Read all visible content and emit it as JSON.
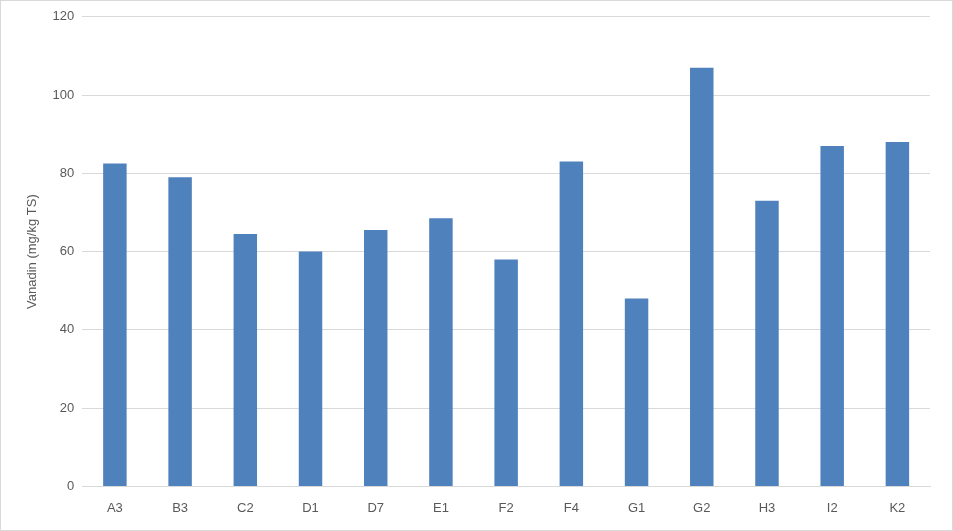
{
  "chart_data": {
    "type": "bar",
    "y_label": "Vanadin (mg/kg TS)",
    "categories": [
      "A3",
      "B3",
      "C2",
      "D1",
      "D7",
      "E1",
      "F2",
      "F4",
      "G1",
      "G2",
      "H3",
      "I2",
      "K2"
    ],
    "values": [
      82.5,
      79,
      64.5,
      60,
      65.5,
      68.5,
      58,
      83,
      48,
      107,
      73,
      87,
      88
    ],
    "color": "#4f81bd",
    "ylim": [
      0,
      120
    ],
    "yticks": [
      0,
      20,
      40,
      60,
      80,
      100,
      120
    ],
    "grid": true
  }
}
